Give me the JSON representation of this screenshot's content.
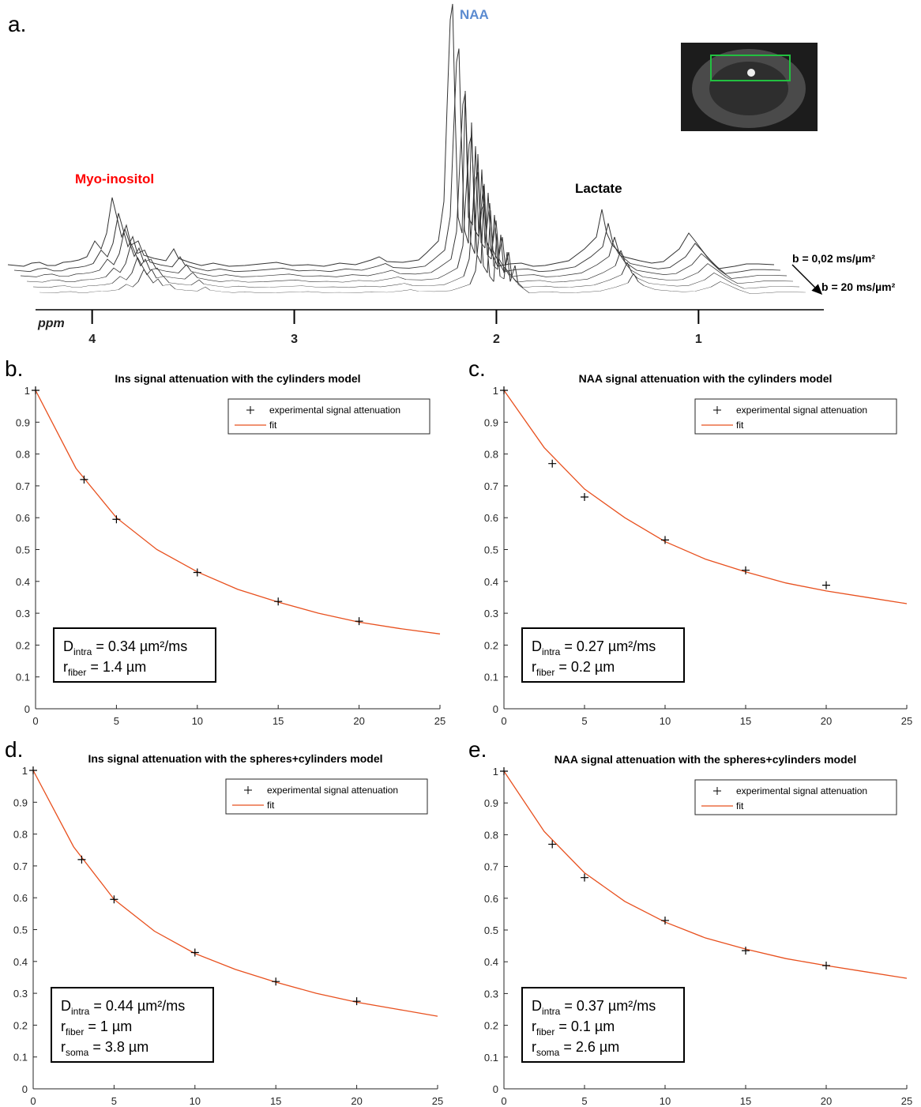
{
  "chart_data": [
    {
      "type": "spectrum",
      "panel_label": "a.",
      "xlabel": "ppm",
      "xlim": [
        4.28,
        0.38
      ],
      "xticks": [
        4,
        3,
        2,
        1
      ],
      "annotations": [
        {
          "text": "Myo-inositol",
          "color": "#ff0000"
        },
        {
          "text": "NAA",
          "color": "#5b8bd0"
        },
        {
          "text": "Lactate",
          "color": "#000000"
        }
      ],
      "b_labels": [
        "b = 0,02 ms/µm²",
        "b = 20 ms/µm²"
      ]
    },
    {
      "type": "scatter",
      "panel_label": "b.",
      "title": "Ins signal attenuation with the cylinders model",
      "xlim": [
        0,
        25
      ],
      "xticks": [
        0,
        5,
        10,
        15,
        20,
        25
      ],
      "ylim": [
        0,
        1
      ],
      "yticks": [
        0,
        0.1,
        0.2,
        0.3,
        0.4,
        0.5,
        0.6,
        0.7,
        0.8,
        0.9,
        1
      ],
      "series": [
        {
          "name": "experimental signal attenuation",
          "color": "#000000",
          "x": [
            0,
            3,
            5,
            10,
            15,
            20
          ],
          "values": [
            1,
            0.72,
            0.595,
            0.428,
            0.337,
            0.275
          ]
        },
        {
          "name": "fit",
          "color": "#e8501e",
          "x": [
            0,
            2.5,
            5,
            7.5,
            10,
            12.5,
            15,
            17.5,
            20,
            22.5,
            25
          ],
          "values": [
            1,
            0.755,
            0.6,
            0.5,
            0.43,
            0.375,
            0.335,
            0.3,
            0.272,
            0.252,
            0.235
          ]
        }
      ],
      "annotation": [
        {
          "symbol": "D",
          "sub": "intra",
          "text": " = 0.34 µm²/ms"
        },
        {
          "symbol": "r",
          "sub": "fiber",
          "text": " = 1.4 µm"
        }
      ]
    },
    {
      "type": "scatter",
      "panel_label": "c.",
      "title": "NAA signal attenuation with the cylinders model",
      "xlim": [
        0,
        25
      ],
      "xticks": [
        0,
        5,
        10,
        15,
        20,
        25
      ],
      "ylim": [
        0,
        1
      ],
      "yticks": [
        0,
        0.1,
        0.2,
        0.3,
        0.4,
        0.5,
        0.6,
        0.7,
        0.8,
        0.9,
        1
      ],
      "series": [
        {
          "name": "experimental signal attenuation",
          "color": "#000000",
          "x": [
            0,
            3,
            5,
            10,
            15,
            20
          ],
          "values": [
            1,
            0.77,
            0.665,
            0.53,
            0.435,
            0.388
          ]
        },
        {
          "name": "fit",
          "color": "#e8501e",
          "x": [
            0,
            2.5,
            5,
            7.5,
            10,
            12.5,
            15,
            17.5,
            20,
            22.5,
            25
          ],
          "values": [
            1,
            0.82,
            0.69,
            0.6,
            0.525,
            0.47,
            0.43,
            0.395,
            0.37,
            0.35,
            0.33
          ]
        }
      ],
      "annotation": [
        {
          "symbol": "D",
          "sub": "intra",
          "text": " = 0.27 µm²/ms"
        },
        {
          "symbol": "r",
          "sub": "fiber",
          "text": " = 0.2 µm"
        }
      ]
    },
    {
      "type": "scatter",
      "panel_label": "d.",
      "title": "Ins signal attenuation with the spheres+cylinders model",
      "xlim": [
        0,
        25
      ],
      "xticks": [
        0,
        5,
        10,
        15,
        20,
        25
      ],
      "ylim": [
        0,
        1
      ],
      "yticks": [
        0,
        0.1,
        0.2,
        0.3,
        0.4,
        0.5,
        0.6,
        0.7,
        0.8,
        0.9,
        1
      ],
      "series": [
        {
          "name": "experimental signal attenuation",
          "color": "#000000",
          "x": [
            0,
            3,
            5,
            10,
            15,
            20
          ],
          "values": [
            1,
            0.72,
            0.595,
            0.428,
            0.337,
            0.275
          ]
        },
        {
          "name": "fit",
          "color": "#e8501e",
          "x": [
            0,
            2.5,
            5,
            7.5,
            10,
            12.5,
            15,
            17.5,
            20,
            22.5,
            25
          ],
          "values": [
            1,
            0.76,
            0.595,
            0.495,
            0.425,
            0.375,
            0.335,
            0.3,
            0.272,
            0.25,
            0.228
          ]
        }
      ],
      "annotation": [
        {
          "symbol": "D",
          "sub": "intra",
          "text": " = 0.44 µm²/ms"
        },
        {
          "symbol": "r",
          "sub": "fiber",
          "text": " = 1 µm"
        },
        {
          "symbol": "r",
          "sub": "soma",
          "text": " = 3.8 µm"
        }
      ]
    },
    {
      "type": "scatter",
      "panel_label": "e.",
      "title": "NAA signal attenuation with the spheres+cylinders model",
      "xlim": [
        0,
        25
      ],
      "xticks": [
        0,
        5,
        10,
        15,
        20,
        25
      ],
      "ylim": [
        0,
        1
      ],
      "yticks": [
        0,
        0.1,
        0.2,
        0.3,
        0.4,
        0.5,
        0.6,
        0.7,
        0.8,
        0.9,
        1
      ],
      "series": [
        {
          "name": "experimental signal attenuation",
          "color": "#000000",
          "x": [
            0,
            3,
            5,
            10,
            15,
            20
          ],
          "values": [
            1,
            0.77,
            0.665,
            0.53,
            0.435,
            0.388
          ]
        },
        {
          "name": "fit",
          "color": "#e8501e",
          "x": [
            0,
            2.5,
            5,
            7.5,
            10,
            12.5,
            15,
            17.5,
            20,
            22.5,
            25
          ],
          "values": [
            1,
            0.81,
            0.68,
            0.59,
            0.525,
            0.475,
            0.44,
            0.41,
            0.388,
            0.368,
            0.348
          ]
        }
      ],
      "annotation": [
        {
          "symbol": "D",
          "sub": "intra",
          "text": " = 0.37 µm²/ms"
        },
        {
          "symbol": "r",
          "sub": "fiber",
          "text": " = 0.1 µm"
        },
        {
          "symbol": "r",
          "sub": "soma",
          "text": " = 2.6 µm"
        }
      ]
    }
  ]
}
